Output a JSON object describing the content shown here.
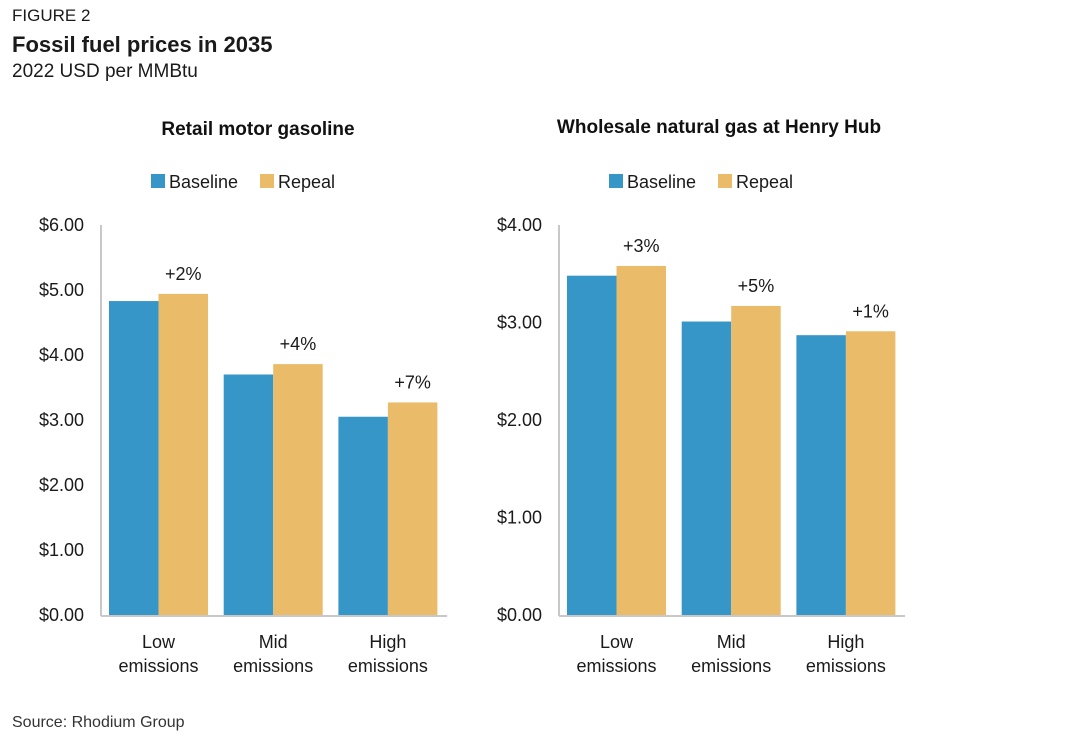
{
  "figure": {
    "label": "FIGURE 2",
    "title": "Fossil fuel prices in 2035",
    "subtitle": "2022 USD per MMBtu",
    "source": "Source: Rhodium Group"
  },
  "colors": {
    "baseline": "#3796c8",
    "repeal": "#eabc69",
    "axis": "#c8c8c8"
  },
  "chart_data": [
    {
      "type": "bar",
      "title": "Retail motor gasoline",
      "categories": [
        [
          "Low",
          "emissions"
        ],
        [
          "Mid",
          "emissions"
        ],
        [
          "High",
          "emissions"
        ]
      ],
      "series": [
        {
          "name": "Baseline",
          "values": [
            4.83,
            3.7,
            3.05
          ]
        },
        {
          "name": "Repeal",
          "values": [
            4.94,
            3.86,
            3.27
          ]
        }
      ],
      "data_labels": [
        "+2%",
        "+4%",
        "+7%"
      ],
      "yticks": [
        "$0.00",
        "$1.00",
        "$2.00",
        "$3.00",
        "$4.00",
        "$5.00",
        "$6.00"
      ],
      "ylim": [
        0,
        6
      ],
      "legend": "top",
      "grid": false
    },
    {
      "type": "bar",
      "title": "Wholesale natural gas at Henry Hub",
      "categories": [
        [
          "Low",
          "emissions"
        ],
        [
          "Mid",
          "emissions"
        ],
        [
          "High",
          "emissions"
        ]
      ],
      "series": [
        {
          "name": "Baseline",
          "values": [
            3.48,
            3.01,
            2.87
          ]
        },
        {
          "name": "Repeal",
          "values": [
            3.58,
            3.17,
            2.91
          ]
        }
      ],
      "data_labels": [
        "+3%",
        "+5%",
        "+1%"
      ],
      "yticks": [
        "$0.00",
        "$1.00",
        "$2.00",
        "$3.00",
        "$4.00"
      ],
      "ylim": [
        0,
        4
      ],
      "legend": "top",
      "grid": false
    }
  ]
}
